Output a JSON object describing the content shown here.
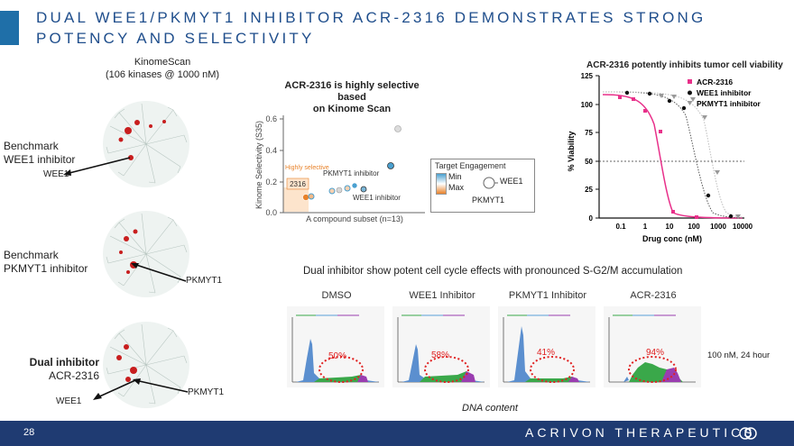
{
  "slide": {
    "title": "DUAL WEE1/PKMYT1 INHIBITOR ACR-2316 DEMONSTRATES STRONG POTENCY AND SELECTIVITY",
    "page_number": "28",
    "brand": "ACRIVON THERAPEUTICS"
  },
  "kinome": {
    "header_line1": "KinomeScan",
    "header_line2": "(106 kinases @ 1000 nM)",
    "panels": [
      {
        "label_line1": "Benchmark",
        "label_line2": "WEE1 inhibitor",
        "targets": [
          "WEE1"
        ]
      },
      {
        "label_line1": "Benchmark",
        "label_line2": "PKMYT1 inhibitor",
        "targets": [
          "PKMYT1"
        ]
      },
      {
        "label_line1": "Dual inhibitor",
        "label_line2": "ACR-2316",
        "targets": [
          "PKMYT1",
          "WEE1"
        ]
      }
    ]
  },
  "scatter": {
    "title_line1": "ACR-2316 is highly selective based",
    "title_line2": "on Kinome Scan",
    "xlabel": "A compound subset (n=13)",
    "ylabel": "Kinome Selectivity (S35)",
    "yticks": [
      "0.6",
      "0.4",
      "0.2",
      "0.0"
    ],
    "highly_selective": "Highly selective",
    "ann_2316": "2316",
    "ann_pkmyt1": "PKMYT1 inhibitor",
    "ann_wee1": "WEE1 inhibitor",
    "legend_title": "Target Engagement",
    "legend_min": "Min",
    "legend_max": "Max",
    "legend_wee1": "WEE1",
    "legend_pkmyt1": "PKMYT1"
  },
  "viability": {
    "title": "ACR-2316 potently inhibits tumor cell viability",
    "ylabel": "% Viability",
    "xlabel": "Drug conc (nM)",
    "yticks": [
      "125",
      "100",
      "75",
      "50",
      "25",
      "0"
    ],
    "xticks": [
      "0.1",
      "1",
      "10",
      "100",
      "1000",
      "10000"
    ],
    "legend": [
      "ACR-2316",
      "WEE1 inhibitor",
      "PKMYT1 inhibitor"
    ],
    "colors": [
      "#e8308a",
      "#111111",
      "#999999"
    ]
  },
  "cellcycle": {
    "heading": "Dual inhibitor show potent cell cycle effects with pronounced S-G2/M accumulation",
    "panels": [
      {
        "title": "DMSO",
        "pct": "50%"
      },
      {
        "title": "WEE1 Inhibitor",
        "pct": "58%"
      },
      {
        "title": "PKMYT1 Inhibitor",
        "pct": "41%"
      },
      {
        "title": "ACR-2316",
        "pct": "94%"
      }
    ],
    "condition": "100 nM, 24 hour",
    "xcaption": "DNA content"
  }
}
